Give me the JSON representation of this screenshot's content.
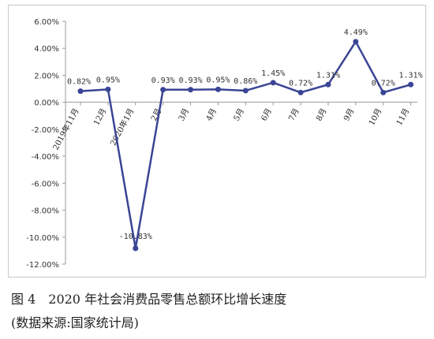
{
  "chart_data": {
    "type": "line",
    "categories": [
      "2019年11月",
      "12月",
      "2020年1月",
      "2月",
      "3月",
      "4月",
      "5月",
      "6月",
      "7月",
      "8月",
      "9月",
      "10月",
      "11月"
    ],
    "values": [
      0.82,
      0.95,
      -10.83,
      0.93,
      0.93,
      0.95,
      0.86,
      1.45,
      0.72,
      1.31,
      4.49,
      0.72,
      1.31
    ],
    "data_labels": [
      "0.82%",
      "0.95%",
      "-10.83%",
      "0.93%",
      "0.93%",
      "0.95%",
      "0.86%",
      "1.45%",
      "0.72%",
      "1.31%",
      "4.49%",
      "0.72%",
      "1.31%"
    ],
    "yticks": [
      6,
      4,
      2,
      0,
      -2,
      -4,
      -6,
      -8,
      -10,
      -12
    ],
    "ytick_labels": [
      "6.00%",
      "4.00%",
      "2.00%",
      "0.00%",
      "-2.00%",
      "-4.00%",
      "-6.00%",
      "-8.00%",
      "-10.00%",
      "-12.00%"
    ],
    "ylim": [
      -12,
      6
    ],
    "grid": false,
    "legend": "none",
    "colors": {
      "line": "#3a4595",
      "marker": "#3a4595",
      "axis": "#999999"
    }
  },
  "caption": {
    "line1": "图 4　2020 年社会消费品零售总额环比增长速度",
    "line2": "(数据来源:国家统计局)"
  }
}
